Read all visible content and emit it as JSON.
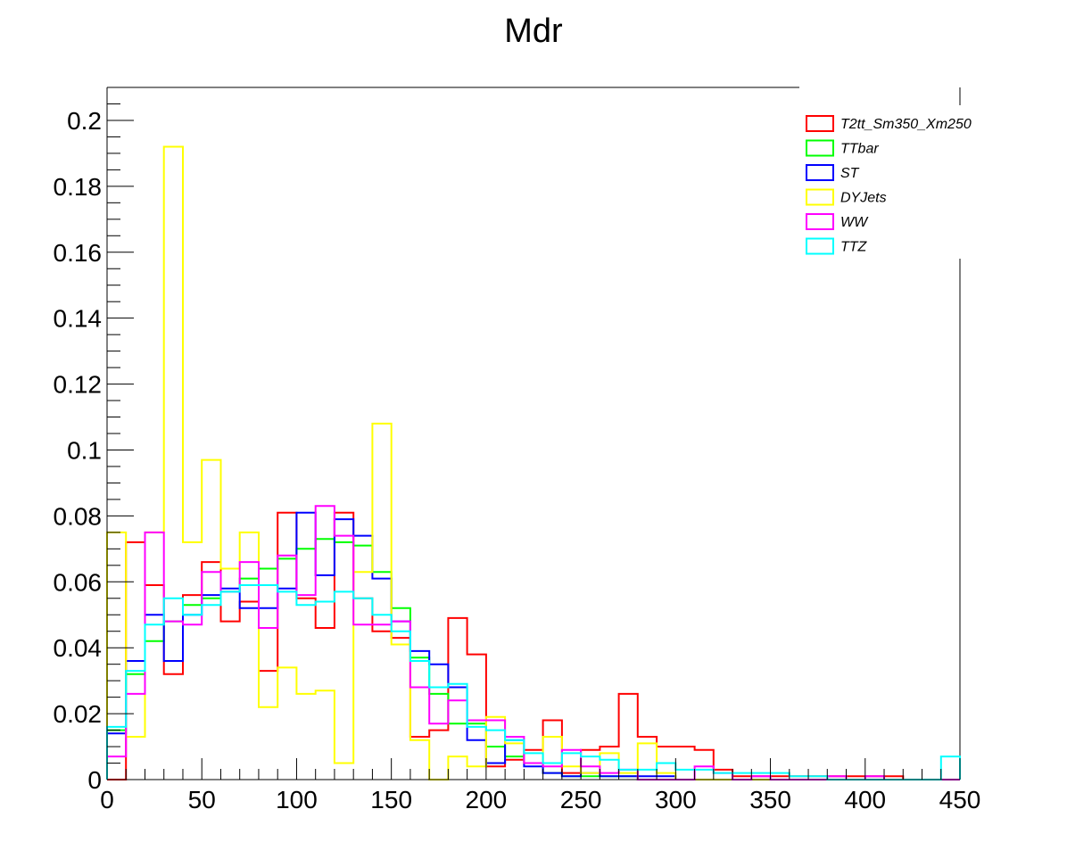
{
  "chart_data": {
    "type": "line",
    "title": "Mdr",
    "xlabel": "",
    "ylabel": "",
    "xlim": [
      0,
      450
    ],
    "ylim": [
      0,
      0.21
    ],
    "bin_width": 10,
    "x_ticks": [
      0,
      50,
      100,
      150,
      200,
      250,
      300,
      350,
      400,
      450
    ],
    "x_tick_labels": [
      "0",
      "50",
      "100",
      "150",
      "200",
      "250",
      "300",
      "350",
      "400",
      "450"
    ],
    "y_ticks": [
      0,
      0.02,
      0.04,
      0.06,
      0.08,
      0.1,
      0.12,
      0.14,
      0.16,
      0.18,
      0.2
    ],
    "y_tick_labels": [
      "0",
      "0.02",
      "0.04",
      "0.06",
      "0.08",
      "0.1",
      "0.12",
      "0.14",
      "0.16",
      "0.18",
      "0.2"
    ],
    "grid": false,
    "legend_position": "top-right",
    "series": [
      {
        "name": "T2tt_Sm350_Xm250",
        "color": "#ff0000",
        "values": [
          0.0,
          0.072,
          0.059,
          0.032,
          0.056,
          0.066,
          0.048,
          0.054,
          0.033,
          0.081,
          0.055,
          0.046,
          0.081,
          0.055,
          0.045,
          0.043,
          0.013,
          0.015,
          0.049,
          0.038,
          0.004,
          0.006,
          0.009,
          0.018,
          0.002,
          0.009,
          0.01,
          0.026,
          0.013,
          0.01,
          0.01,
          0.009,
          0.003,
          0.001,
          0.001,
          0.001,
          0.001,
          0.001,
          0.001,
          0.001,
          0.001,
          0.001,
          0.0,
          0.0,
          0.0
        ]
      },
      {
        "name": "TTbar",
        "color": "#00ff00",
        "values": [
          0.015,
          0.032,
          0.042,
          0.048,
          0.053,
          0.055,
          0.057,
          0.061,
          0.064,
          0.067,
          0.07,
          0.073,
          0.072,
          0.071,
          0.063,
          0.052,
          0.037,
          0.026,
          0.017,
          0.017,
          0.01,
          0.007,
          0.005,
          0.002,
          0.001,
          0.001,
          0.001,
          0.001,
          0.0,
          0.0,
          0.0,
          0.0,
          0.0,
          0.0,
          0.0,
          0.0,
          0.0,
          0.0,
          0.0,
          0.0,
          0.0,
          0.0,
          0.0,
          0.0,
          0.0
        ]
      },
      {
        "name": "ST",
        "color": "#0000ff",
        "values": [
          0.014,
          0.036,
          0.05,
          0.036,
          0.05,
          0.056,
          0.058,
          0.052,
          0.052,
          0.058,
          0.081,
          0.062,
          0.079,
          0.074,
          0.061,
          0.048,
          0.039,
          0.035,
          0.028,
          0.012,
          0.005,
          0.012,
          0.004,
          0.002,
          0.001,
          0.002,
          0.001,
          0.001,
          0.001,
          0.001,
          0.0,
          0.0,
          0.0,
          0.0,
          0.0,
          0.0,
          0.0,
          0.0,
          0.0,
          0.0,
          0.0,
          0.0,
          0.0,
          0.0,
          0.0
        ]
      },
      {
        "name": "DYJets",
        "color": "#ffff00",
        "values": [
          0.075,
          0.013,
          0.075,
          0.192,
          0.072,
          0.097,
          0.064,
          0.075,
          0.022,
          0.034,
          0.026,
          0.027,
          0.005,
          0.063,
          0.108,
          0.041,
          0.012,
          0.0,
          0.007,
          0.004,
          0.019,
          0.011,
          0.005,
          0.013,
          0.004,
          0.002,
          0.008,
          0.002,
          0.011,
          0.002,
          0.0,
          0.0,
          0.0,
          0.0,
          0.0,
          0.0,
          0.0,
          0.0,
          0.0,
          0.0,
          0.0,
          0.0,
          0.0,
          0.0,
          0.0
        ]
      },
      {
        "name": "WW",
        "color": "#ff00ff",
        "values": [
          0.007,
          0.026,
          0.075,
          0.048,
          0.047,
          0.063,
          0.057,
          0.066,
          0.046,
          0.068,
          0.056,
          0.083,
          0.074,
          0.047,
          0.047,
          0.048,
          0.028,
          0.017,
          0.024,
          0.018,
          0.018,
          0.013,
          0.005,
          0.004,
          0.009,
          0.004,
          0.002,
          0.003,
          0.0,
          0.0,
          0.0,
          0.004,
          0.002,
          0.0,
          0.001,
          0.0,
          0.0,
          0.0,
          0.001,
          0.0,
          0.001,
          0.0,
          0.0,
          0.0,
          0.0
        ]
      },
      {
        "name": "TTZ",
        "color": "#00ffff",
        "values": [
          0.016,
          0.033,
          0.047,
          0.055,
          0.05,
          0.053,
          0.057,
          0.059,
          0.059,
          0.057,
          0.053,
          0.054,
          0.057,
          0.055,
          0.05,
          0.045,
          0.036,
          0.028,
          0.029,
          0.016,
          0.015,
          0.012,
          0.008,
          0.005,
          0.008,
          0.007,
          0.006,
          0.003,
          0.003,
          0.005,
          0.003,
          0.003,
          0.002,
          0.002,
          0.002,
          0.002,
          0.001,
          0.001,
          0.0,
          0.0,
          0.0,
          0.0,
          0.0,
          0.0,
          0.007
        ]
      }
    ]
  }
}
